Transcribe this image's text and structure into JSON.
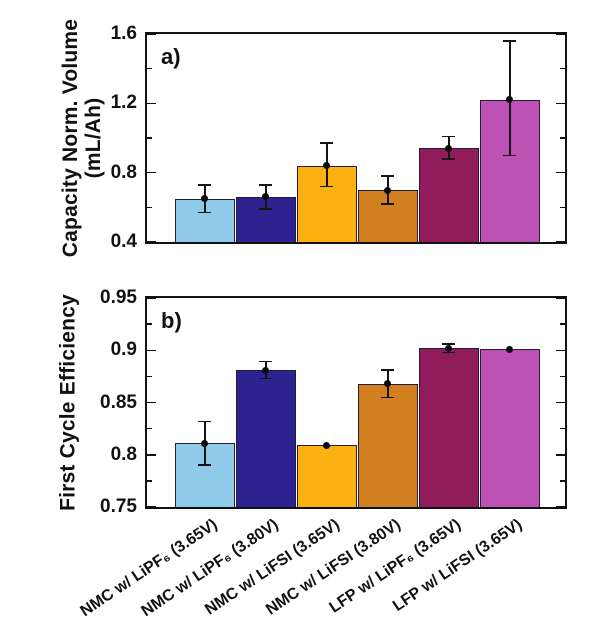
{
  "chart_data": {
    "type": "bar",
    "title": "",
    "categories": [
      "NMC w/ LiPF₆ (3.65V)",
      "NMC w/ LiPF₆ (3.80V)",
      "NMC w/ LiFSI (3.65V)",
      "NMC w/ LiFSI (3.80V)",
      "LFP w/ LiPF₆ (3.65V)",
      "LFP w/ LiFSI (3.65V)"
    ],
    "bar_colors": [
      "#8FCBE8",
      "#2C2390",
      "#FCB112",
      "#D2801F",
      "#911C5C",
      "#BE51B4"
    ],
    "bar_edge_color": "#231c3a",
    "error_color": "#151515",
    "legend": "none",
    "grid": "off",
    "panels": [
      {
        "label": "a)",
        "ylabel_lines": [
          "Capacity Norm. Volume",
          "(mL/Ah)"
        ],
        "ylim": [
          0.4,
          1.6
        ],
        "yticks": [
          0.4,
          0.8,
          1.2,
          1.6
        ],
        "ytick_labels": [
          "0.4",
          "0.8",
          "1.2",
          "1.6"
        ],
        "yticks_minor": [
          0.6,
          1.0,
          1.4
        ],
        "values": [
          0.65,
          0.66,
          0.84,
          0.7,
          0.94,
          1.22
        ],
        "err_up": [
          0.08,
          0.07,
          0.13,
          0.08,
          0.07,
          0.34
        ],
        "err_down": [
          0.08,
          0.07,
          0.12,
          0.08,
          0.06,
          0.32
        ]
      },
      {
        "label": "b)",
        "ylabel_lines": [
          "First Cycle Efficiency"
        ],
        "ylim": [
          0.75,
          0.95
        ],
        "yticks": [
          0.75,
          0.8,
          0.85,
          0.9,
          0.95
        ],
        "ytick_labels": [
          "0.75",
          "0.8",
          "0.85",
          "0.9",
          "0.95"
        ],
        "yticks_minor": [
          0.775,
          0.825,
          0.875,
          0.925
        ],
        "values": [
          0.811,
          0.881,
          0.809,
          0.868,
          0.902,
          0.901
        ],
        "err_up": [
          0.021,
          0.008,
          0.001,
          0.013,
          0.004,
          0.001
        ],
        "err_down": [
          0.021,
          0.008,
          0.001,
          0.013,
          0.004,
          0.001
        ]
      }
    ]
  }
}
